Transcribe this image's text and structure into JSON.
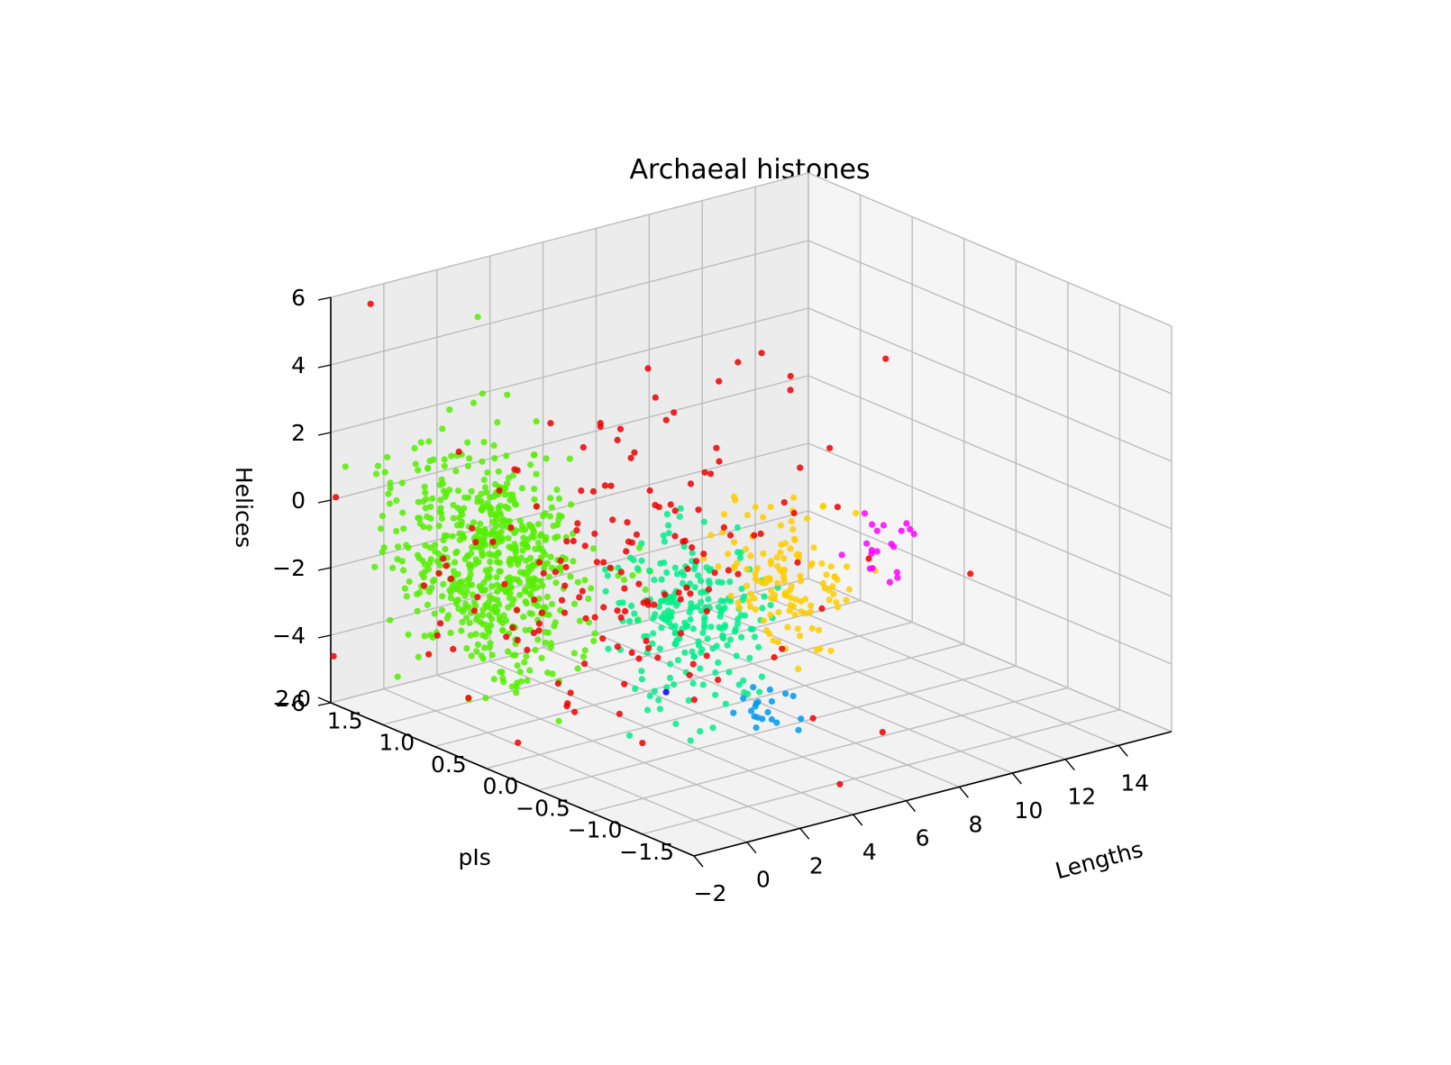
{
  "chart_data": {
    "type": "scatter",
    "projection": "3d",
    "title": "Archaeal histones",
    "xlabel": "Lengths",
    "ylabel": "pIs",
    "zlabel": "Helices",
    "xlim": [
      -2,
      16
    ],
    "ylim": [
      -1.5,
      2.0
    ],
    "zlim": [
      -6,
      6
    ],
    "xticks": [
      "−2",
      "0",
      "2",
      "4",
      "6",
      "8",
      "10",
      "12",
      "14"
    ],
    "yticks": [
      "2.0",
      "1.5",
      "1.0",
      "0.5",
      "0.0",
      "−0.5",
      "−1.0",
      "−1.5"
    ],
    "zticks": [
      "6",
      "4",
      "2",
      "0",
      "−2",
      "−4",
      "−6"
    ],
    "grid": true,
    "legend": "none",
    "series": [
      {
        "color": "#55ee00",
        "cluster": {
          "center": [
            0,
            1.0,
            -1
          ],
          "spread": [
            0.9,
            0.45,
            1.5
          ],
          "count": 520
        },
        "points": []
      },
      {
        "color": "#55ee00",
        "cluster": {
          "center": [
            1.5,
            1.2,
            -1.5
          ],
          "spread": [
            0.35,
            0.2,
            2.0
          ],
          "count": 90
        },
        "points": []
      },
      {
        "color": "#00ee88",
        "cluster": {
          "center": [
            4.5,
            0.3,
            -2.5
          ],
          "spread": [
            0.7,
            0.3,
            1.5
          ],
          "count": 160
        },
        "points": []
      },
      {
        "color": "#00ee88",
        "cluster": {
          "center": [
            6.5,
            0.4,
            -3.0
          ],
          "spread": [
            0.5,
            0.2,
            1.0
          ],
          "count": 60
        },
        "points": []
      },
      {
        "color": "#ffcc00",
        "cluster": {
          "center": [
            9,
            0.4,
            -2.5
          ],
          "spread": [
            0.5,
            0.25,
            1.0
          ],
          "count": 130
        },
        "points": []
      },
      {
        "color": "#ff00ff",
        "cluster": {
          "center": [
            12,
            0.2,
            -2.0
          ],
          "spread": [
            0.3,
            0.15,
            0.6
          ],
          "count": 20
        },
        "points": []
      },
      {
        "color": "#0099ee",
        "cluster": {
          "center": [
            5,
            -0.4,
            -4.5
          ],
          "spread": [
            0.3,
            0.15,
            0.4
          ],
          "count": 20
        },
        "points": []
      },
      {
        "color": "#0000ff",
        "cluster": {
          "center": [
            3.6,
            0.2,
            -4.5
          ],
          "spread": [
            0,
            0,
            0
          ],
          "count": 1
        },
        "points": []
      },
      {
        "color": "#ee0000",
        "cluster": {
          "center": [
            3,
            0.6,
            -1.5
          ],
          "spread": [
            3.0,
            0.55,
            2.0
          ],
          "count": 150
        },
        "points": [
          [
            -0.5,
            2.0,
            5.5
          ],
          [
            15,
            1.0,
            2.0
          ],
          [
            12.5,
            0.9,
            0.0
          ],
          [
            11.5,
            1.3,
            2.5
          ],
          [
            11.8,
            1.1,
            1.6
          ],
          [
            12.2,
            1.2,
            1.8
          ],
          [
            13.5,
            -0.2,
            -2.5
          ],
          [
            3.5,
            -1.5,
            -5.0
          ],
          [
            5.5,
            -1.4,
            -4.0
          ],
          [
            9.5,
            1.2,
            2.2
          ],
          [
            7.5,
            1.3,
            2.0
          ],
          [
            8.0,
            1.5,
            2.5
          ],
          [
            5.5,
            1.8,
            1.0
          ],
          [
            4.0,
            1.1,
            1.5
          ]
        ]
      }
    ]
  }
}
